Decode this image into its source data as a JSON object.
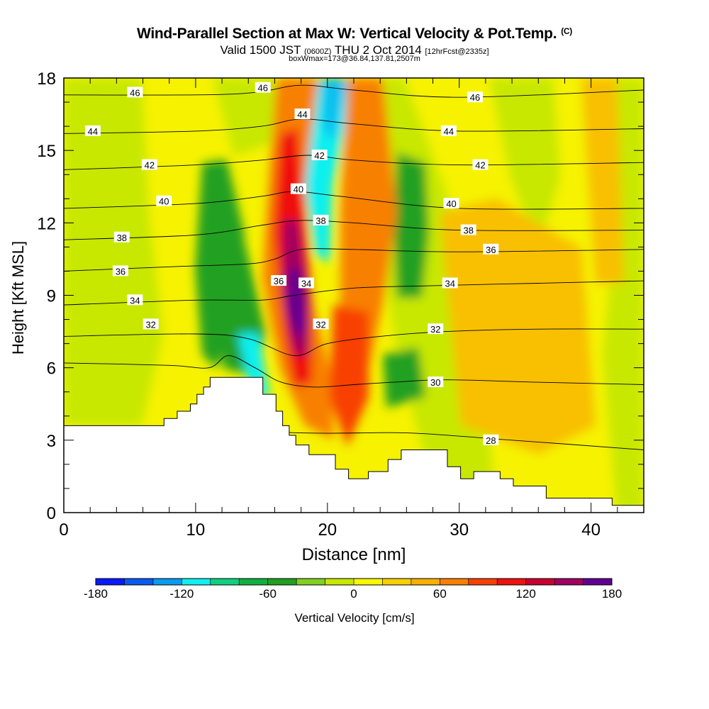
{
  "title": {
    "main": "Wind-Parallel Section at Max W: Vertical Velocity & Pot.Temp.",
    "copyright": "(C)",
    "valid_prefix": "Valid 1500 JST",
    "valid_utc": "(0600Z)",
    "valid_date": "THU 2 Oct 2014",
    "forecast": "[12hrFcst@2335z]",
    "box_info": "boxWmax=173@36.84,137.81,2507m"
  },
  "chart_data": {
    "type": "heatmap",
    "xlabel": "Distance [nm]",
    "ylabel": "Height [Kft MSL]",
    "xlim": [
      0,
      44
    ],
    "ylim": [
      0,
      18
    ],
    "x_ticks": [
      0,
      10,
      20,
      30,
      40
    ],
    "x_tick_labels": [
      "0",
      "10",
      "20",
      "30",
      "40"
    ],
    "y_ticks": [
      0,
      3,
      6,
      9,
      12,
      15,
      18
    ],
    "y_tick_labels": [
      "0",
      "3",
      "6",
      "9",
      "12",
      "15",
      "18"
    ],
    "colorbar": {
      "label": "Vertical Velocity [cm/s]",
      "range": [
        -180,
        180
      ],
      "step": 20,
      "tick_values": [
        -180,
        -120,
        -60,
        0,
        60,
        120,
        180
      ],
      "tick_labels": [
        "-180",
        "-120",
        "-60",
        "0",
        "60",
        "120",
        "180"
      ],
      "colors": [
        "#0a1aff",
        "#0a5af0",
        "#0a9af0",
        "#10f0f0",
        "#10d080",
        "#10b040",
        "#20a020",
        "#80d020",
        "#c8e800",
        "#f8f800",
        "#f8d000",
        "#f8b000",
        "#f88000",
        "#f84000",
        "#f01010",
        "#c80030",
        "#a00060",
        "#600090"
      ]
    },
    "terrain_kft": [
      [
        0,
        3.6
      ],
      [
        7.6,
        3.6
      ],
      [
        7.6,
        3.9
      ],
      [
        8.6,
        3.9
      ],
      [
        8.6,
        4.2
      ],
      [
        9.6,
        4.2
      ],
      [
        9.6,
        4.5
      ],
      [
        10.1,
        4.5
      ],
      [
        10.1,
        4.9
      ],
      [
        10.6,
        4.9
      ],
      [
        10.6,
        5.2
      ],
      [
        11.1,
        5.2
      ],
      [
        11.1,
        5.6
      ],
      [
        15.1,
        5.6
      ],
      [
        15.1,
        4.9
      ],
      [
        16.1,
        4.9
      ],
      [
        16.1,
        4.2
      ],
      [
        16.6,
        4.2
      ],
      [
        16.6,
        3.6
      ],
      [
        17.1,
        3.6
      ],
      [
        17.1,
        3.2
      ],
      [
        17.6,
        3.2
      ],
      [
        17.6,
        2.8
      ],
      [
        18.6,
        2.8
      ],
      [
        18.6,
        2.4
      ],
      [
        20.6,
        2.4
      ],
      [
        20.6,
        1.8
      ],
      [
        21.6,
        1.8
      ],
      [
        21.6,
        1.4
      ],
      [
        23.1,
        1.4
      ],
      [
        23.1,
        1.7
      ],
      [
        24.6,
        1.7
      ],
      [
        24.6,
        2.2
      ],
      [
        25.6,
        2.2
      ],
      [
        25.6,
        2.6
      ],
      [
        29.1,
        2.6
      ],
      [
        29.1,
        1.9
      ],
      [
        30.1,
        1.9
      ],
      [
        30.1,
        1.4
      ],
      [
        31.1,
        1.4
      ],
      [
        31.1,
        1.7
      ],
      [
        33.1,
        1.7
      ],
      [
        33.1,
        1.4
      ],
      [
        34.1,
        1.4
      ],
      [
        34.1,
        1.1
      ],
      [
        36.6,
        1.1
      ],
      [
        36.6,
        0.6
      ],
      [
        41.6,
        0.6
      ],
      [
        41.6,
        0.3
      ],
      [
        44,
        0.3
      ]
    ],
    "contours": [
      {
        "value": 28,
        "label": "28",
        "points": [
          [
            0,
            3.6
          ],
          [
            18,
            3.3
          ],
          [
            26,
            3.3
          ],
          [
            34,
            3.0
          ],
          [
            44,
            2.6
          ]
        ]
      },
      {
        "value": 30,
        "label": "30",
        "points": [
          [
            0,
            6.2
          ],
          [
            8,
            6.1
          ],
          [
            11,
            6.0
          ],
          [
            12.5,
            6.5
          ],
          [
            14.5,
            6.0
          ],
          [
            16.5,
            5.4
          ],
          [
            19,
            5.2
          ],
          [
            22,
            5.3
          ],
          [
            25,
            5.4
          ],
          [
            29,
            5.5
          ],
          [
            36,
            5.4
          ],
          [
            44,
            5.3
          ]
        ]
      },
      {
        "value": 32,
        "label": "32",
        "points": [
          [
            0,
            7.3
          ],
          [
            10,
            7.4
          ],
          [
            14,
            7.2
          ],
          [
            17.5,
            6.5
          ],
          [
            20,
            7.0
          ],
          [
            24,
            7.3
          ],
          [
            29,
            7.5
          ],
          [
            36,
            7.6
          ],
          [
            44,
            7.6
          ]
        ]
      },
      {
        "value": 34,
        "label": "34",
        "points": [
          [
            0,
            8.6
          ],
          [
            10,
            8.8
          ],
          [
            15,
            8.8
          ],
          [
            17.5,
            9.0
          ],
          [
            22,
            9.3
          ],
          [
            28,
            9.4
          ],
          [
            36,
            9.5
          ],
          [
            44,
            9.6
          ]
        ]
      },
      {
        "value": 36,
        "label": "36",
        "points": [
          [
            0,
            10.0
          ],
          [
            9,
            10.2
          ],
          [
            14,
            10.3
          ],
          [
            16,
            10.5
          ],
          [
            18,
            10.9
          ],
          [
            22,
            10.9
          ],
          [
            30,
            10.8
          ],
          [
            44,
            10.9
          ]
        ]
      },
      {
        "value": 38,
        "label": "38",
        "points": [
          [
            0,
            11.3
          ],
          [
            10,
            11.5
          ],
          [
            15,
            11.9
          ],
          [
            18,
            12.1
          ],
          [
            22,
            12.0
          ],
          [
            30,
            11.7
          ],
          [
            44,
            11.7
          ]
        ]
      },
      {
        "value": 40,
        "label": "40",
        "points": [
          [
            0,
            12.6
          ],
          [
            10,
            12.8
          ],
          [
            15,
            13.1
          ],
          [
            17.5,
            13.3
          ],
          [
            21,
            13.1
          ],
          [
            30,
            12.6
          ],
          [
            44,
            12.6
          ]
        ]
      },
      {
        "value": 42,
        "label": "42",
        "points": [
          [
            0,
            14.2
          ],
          [
            10,
            14.4
          ],
          [
            15,
            14.6
          ],
          [
            18.5,
            14.8
          ],
          [
            22,
            14.6
          ],
          [
            30,
            14.4
          ],
          [
            44,
            14.5
          ]
        ]
      },
      {
        "value": 44,
        "label": "44",
        "points": [
          [
            0,
            15.7
          ],
          [
            10,
            15.8
          ],
          [
            15,
            16.0
          ],
          [
            18,
            16.3
          ],
          [
            22,
            16.1
          ],
          [
            30,
            15.8
          ],
          [
            44,
            15.9
          ]
        ]
      },
      {
        "value": 46,
        "label": "46",
        "points": [
          [
            0,
            17.3
          ],
          [
            10,
            17.3
          ],
          [
            14.5,
            17.4
          ],
          [
            18,
            17.7
          ],
          [
            22,
            17.5
          ],
          [
            30,
            17.2
          ],
          [
            44,
            17.5
          ]
        ]
      }
    ],
    "contour_labels": [
      {
        "text": "46",
        "x": 5.4,
        "y": 17.4
      },
      {
        "text": "46",
        "x": 15.1,
        "y": 17.6
      },
      {
        "text": "46",
        "x": 31.2,
        "y": 17.2
      },
      {
        "text": "44",
        "x": 2.2,
        "y": 15.8
      },
      {
        "text": "44",
        "x": 18.1,
        "y": 16.5
      },
      {
        "text": "44",
        "x": 29.2,
        "y": 15.8
      },
      {
        "text": "42",
        "x": 6.5,
        "y": 14.4
      },
      {
        "text": "42",
        "x": 19.4,
        "y": 14.8
      },
      {
        "text": "42",
        "x": 31.6,
        "y": 14.4
      },
      {
        "text": "40",
        "x": 7.6,
        "y": 12.9
      },
      {
        "text": "40",
        "x": 17.8,
        "y": 13.4
      },
      {
        "text": "40",
        "x": 29.4,
        "y": 12.8
      },
      {
        "text": "38",
        "x": 4.4,
        "y": 11.4
      },
      {
        "text": "38",
        "x": 19.5,
        "y": 12.1
      },
      {
        "text": "38",
        "x": 30.7,
        "y": 11.7
      },
      {
        "text": "36",
        "x": 4.3,
        "y": 10.0
      },
      {
        "text": "36",
        "x": 16.3,
        "y": 9.6
      },
      {
        "text": "36",
        "x": 32.4,
        "y": 10.9
      },
      {
        "text": "34",
        "x": 5.4,
        "y": 8.8
      },
      {
        "text": "34",
        "x": 18.4,
        "y": 9.5
      },
      {
        "text": "34",
        "x": 29.3,
        "y": 9.5
      },
      {
        "text": "32",
        "x": 6.6,
        "y": 7.8
      },
      {
        "text": "32",
        "x": 19.5,
        "y": 7.8
      },
      {
        "text": "32",
        "x": 28.2,
        "y": 7.6
      },
      {
        "text": "30",
        "x": 28.2,
        "y": 5.4
      },
      {
        "text": "28",
        "x": 32.4,
        "y": 3.0
      }
    ]
  }
}
